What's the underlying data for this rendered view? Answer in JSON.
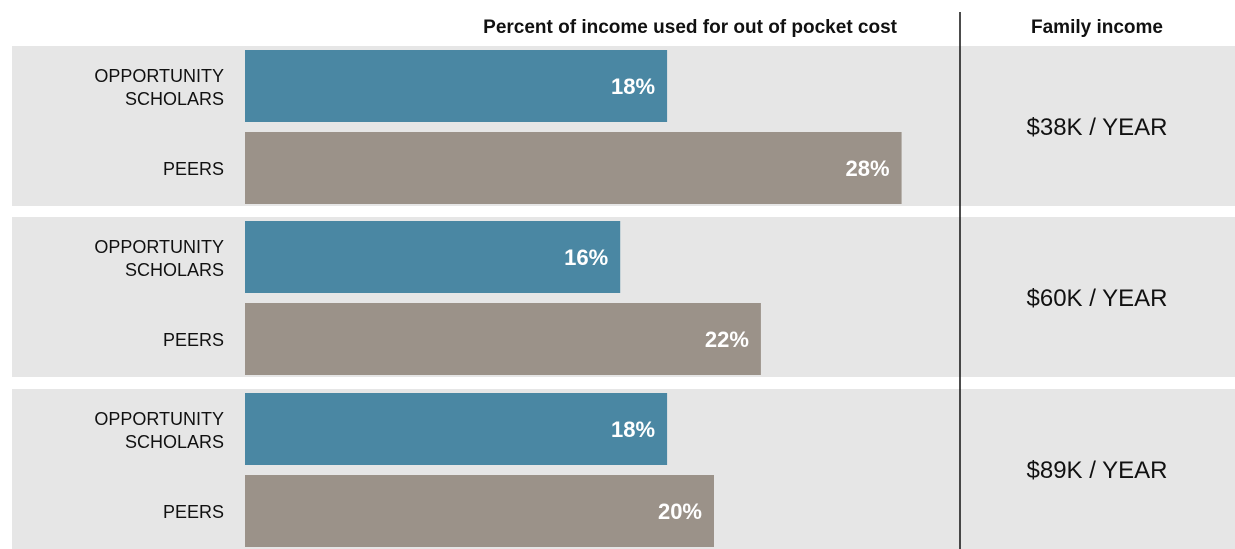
{
  "chart_data": {
    "type": "bar",
    "orientation": "horizontal",
    "title": "Percent of income used for out of pocket cost",
    "side_column_title": "Family income",
    "series": [
      {
        "name": "OPPORTUNITY SCHOLARS",
        "color": "#4a87a3"
      },
      {
        "name": "PEERS",
        "color": "#9b9289"
      }
    ],
    "groups": [
      {
        "income_label": "$38K / YEAR",
        "values": [
          18,
          28
        ]
      },
      {
        "income_label": "$60K / YEAR",
        "values": [
          16,
          22
        ]
      },
      {
        "income_label": "$89K / YEAR",
        "values": [
          18,
          20
        ]
      }
    ],
    "value_suffix": "%",
    "xlim": [
      0,
      36
    ],
    "panel_color": "#e6e6e6"
  }
}
